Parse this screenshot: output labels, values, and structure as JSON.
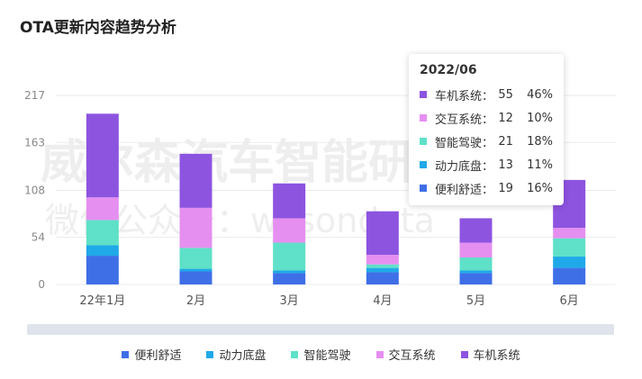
{
  "title": "OTA更新内容趋势分析",
  "watermark": {
    "line1": "威尔森汽车智能研究",
    "line2": "微信公众号：wilsondata"
  },
  "colors": {
    "便利舒适": "#3f6fe7",
    "动力底盘": "#1fa9e8",
    "智能驾驶": "#5fe0c8",
    "交互系统": "#e58ff0",
    "车机系统": "#8d54e0"
  },
  "chart_data": {
    "type": "bar",
    "stacked": true,
    "title": "OTA更新内容趋势分析",
    "categories": [
      "22年1月",
      "2月",
      "3月",
      "4月",
      "5月",
      "6月"
    ],
    "series": [
      {
        "name": "便利舒适",
        "values": [
          33,
          15,
          13,
          14,
          13,
          19
        ]
      },
      {
        "name": "动力底盘",
        "values": [
          12,
          3,
          3,
          5,
          3,
          13
        ]
      },
      {
        "name": "智能驾驶",
        "values": [
          29,
          24,
          32,
          4,
          15,
          21
        ]
      },
      {
        "name": "交互系统",
        "values": [
          26,
          46,
          28,
          11,
          17,
          12
        ]
      },
      {
        "name": "车机系统",
        "values": [
          96,
          62,
          40,
          50,
          28,
          55
        ]
      }
    ],
    "yticks": [
      0,
      54,
      108,
      163,
      217
    ],
    "ylim": [
      0,
      217
    ],
    "legend_position": "bottom"
  },
  "tooltip": {
    "title": "2022/06",
    "rows": [
      {
        "name": "车机系统：",
        "value": "55",
        "pct": "46%",
        "color": "#8d54e0"
      },
      {
        "name": "交互系统：",
        "value": "12",
        "pct": "10%",
        "color": "#e58ff0"
      },
      {
        "name": "智能驾驶：",
        "value": "21",
        "pct": "18%",
        "color": "#5fe0c8"
      },
      {
        "name": "动力底盘：",
        "value": "13",
        "pct": "11%",
        "color": "#1fa9e8"
      },
      {
        "name": "便利舒适：",
        "value": "19",
        "pct": "16%",
        "color": "#3f6fe7"
      }
    ]
  }
}
